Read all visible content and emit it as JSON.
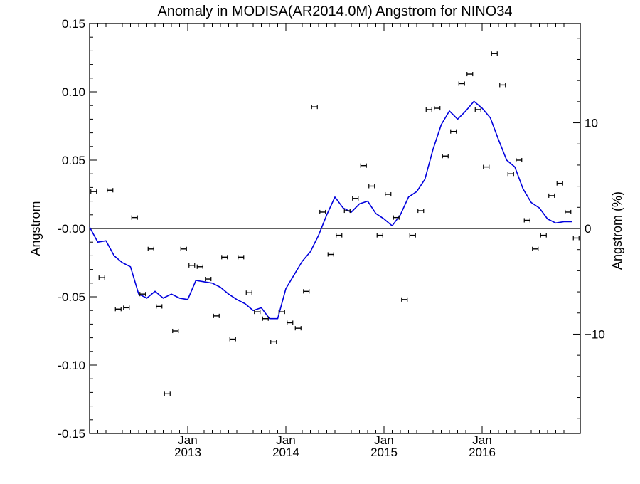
{
  "chart_data": {
    "type": "line",
    "title": "Anomaly in MODISA(AR2014.0M) Angstrom for NINO34",
    "ylabel": "Angstrom",
    "ylabel_right": "Angstrom (%)",
    "xlabel": "",
    "xlim": [
      "2012-01",
      "2016-12"
    ],
    "ylim": [
      -0.15,
      0.15
    ],
    "ylim_right": [
      -19.4,
      19.4
    ],
    "y_ticks": [
      {
        "value": 0.15,
        "label": "0.15"
      },
      {
        "value": 0.1,
        "label": "0.10"
      },
      {
        "value": 0.05,
        "label": "0.05"
      },
      {
        "value": 0.0,
        "label": "-0.00"
      },
      {
        "value": -0.05,
        "label": "-0.05"
      },
      {
        "value": -0.1,
        "label": "-0.10"
      },
      {
        "value": -0.15,
        "label": "-0.15"
      }
    ],
    "y_right_ticks": [
      {
        "value": 10,
        "label": "10"
      },
      {
        "value": 0,
        "label": "0"
      },
      {
        "value": -10,
        "label": "−10"
      }
    ],
    "x_ticks": [
      {
        "date": "2013-01",
        "month": "Jan",
        "year": "2013"
      },
      {
        "date": "2014-01",
        "month": "Jan",
        "year": "2014"
      },
      {
        "date": "2015-01",
        "month": "Jan",
        "year": "2015"
      },
      {
        "date": "2016-01",
        "month": "Jan",
        "year": "2016"
      }
    ],
    "grid": false,
    "zero_line": true,
    "colors": {
      "line": "#0000dd",
      "points": "#000000",
      "axes": "#000000"
    },
    "series": [
      {
        "type": "line",
        "points": [
          [
            "2012-01",
            0.001
          ],
          [
            "2012-02",
            -0.01
          ],
          [
            "2012-03",
            -0.009
          ],
          [
            "2012-04",
            -0.02
          ],
          [
            "2012-05",
            -0.025
          ],
          [
            "2012-06",
            -0.028
          ],
          [
            "2012-07",
            -0.048
          ],
          [
            "2012-08",
            -0.051
          ],
          [
            "2012-09",
            -0.046
          ],
          [
            "2012-10",
            -0.051
          ],
          [
            "2012-11",
            -0.048
          ],
          [
            "2012-12",
            -0.051
          ],
          [
            "2013-01",
            -0.052
          ],
          [
            "2013-02",
            -0.038
          ],
          [
            "2013-03",
            -0.039
          ],
          [
            "2013-04",
            -0.04
          ],
          [
            "2013-05",
            -0.043
          ],
          [
            "2013-06",
            -0.048
          ],
          [
            "2013-07",
            -0.052
          ],
          [
            "2013-08",
            -0.055
          ],
          [
            "2013-09",
            -0.06
          ],
          [
            "2013-10",
            -0.058
          ],
          [
            "2013-11",
            -0.066
          ],
          [
            "2013-12",
            -0.066
          ],
          [
            "2014-01",
            -0.044
          ],
          [
            "2014-02",
            -0.034
          ],
          [
            "2014-03",
            -0.024
          ],
          [
            "2014-04",
            -0.017
          ],
          [
            "2014-05",
            -0.005
          ],
          [
            "2014-06",
            0.01
          ],
          [
            "2014-07",
            0.023
          ],
          [
            "2014-08",
            0.015
          ],
          [
            "2014-09",
            0.012
          ],
          [
            "2014-10",
            0.018
          ],
          [
            "2014-11",
            0.02
          ],
          [
            "2014-12",
            0.011
          ],
          [
            "2015-01",
            0.007
          ],
          [
            "2015-02",
            0.002
          ],
          [
            "2015-03",
            0.01
          ],
          [
            "2015-04",
            0.023
          ],
          [
            "2015-05",
            0.027
          ],
          [
            "2015-06",
            0.036
          ],
          [
            "2015-07",
            0.058
          ],
          [
            "2015-08",
            0.076
          ],
          [
            "2015-09",
            0.086
          ],
          [
            "2015-10",
            0.08
          ],
          [
            "2015-11",
            0.086
          ],
          [
            "2015-12",
            0.093
          ],
          [
            "2016-01",
            0.088
          ],
          [
            "2016-02",
            0.081
          ],
          [
            "2016-03",
            0.065
          ],
          [
            "2016-04",
            0.05
          ],
          [
            "2016-05",
            0.045
          ],
          [
            "2016-06",
            0.029
          ],
          [
            "2016-07",
            0.019
          ],
          [
            "2016-08",
            0.015
          ],
          [
            "2016-09",
            0.007
          ],
          [
            "2016-10",
            0.004
          ],
          [
            "2016-11",
            0.005
          ],
          [
            "2016-12",
            0.005
          ]
        ]
      },
      {
        "type": "scatter",
        "error_bar_halfwidth": 0.0008,
        "points": [
          [
            "2012-01",
            0.027
          ],
          [
            "2012-02",
            -0.036
          ],
          [
            "2012-03",
            0.028
          ],
          [
            "2012-04",
            -0.059
          ],
          [
            "2012-05",
            -0.058
          ],
          [
            "2012-06",
            0.008
          ],
          [
            "2012-07",
            -0.048
          ],
          [
            "2012-08",
            -0.015
          ],
          [
            "2012-09",
            -0.057
          ],
          [
            "2012-10",
            -0.121
          ],
          [
            "2012-11",
            -0.075
          ],
          [
            "2012-12",
            -0.015
          ],
          [
            "2013-01",
            -0.027
          ],
          [
            "2013-02",
            -0.028
          ],
          [
            "2013-03",
            -0.037
          ],
          [
            "2013-04",
            -0.064
          ],
          [
            "2013-05",
            -0.021
          ],
          [
            "2013-06",
            -0.081
          ],
          [
            "2013-07",
            -0.021
          ],
          [
            "2013-08",
            -0.047
          ],
          [
            "2013-09",
            -0.061
          ],
          [
            "2013-10",
            -0.066
          ],
          [
            "2013-11",
            -0.083
          ],
          [
            "2013-12",
            -0.061
          ],
          [
            "2014-01",
            -0.069
          ],
          [
            "2014-02",
            -0.073
          ],
          [
            "2014-03",
            -0.046
          ],
          [
            "2014-04",
            0.089
          ],
          [
            "2014-05",
            0.012
          ],
          [
            "2014-06",
            -0.019
          ],
          [
            "2014-07",
            -0.005
          ],
          [
            "2014-08",
            0.013
          ],
          [
            "2014-09",
            0.022
          ],
          [
            "2014-10",
            0.046
          ],
          [
            "2014-11",
            0.031
          ],
          [
            "2014-12",
            -0.005
          ],
          [
            "2015-01",
            0.025
          ],
          [
            "2015-02",
            0.008
          ],
          [
            "2015-03",
            -0.052
          ],
          [
            "2015-04",
            -0.005
          ],
          [
            "2015-05",
            0.013
          ],
          [
            "2015-06",
            0.087
          ],
          [
            "2015-07",
            0.088
          ],
          [
            "2015-08",
            0.053
          ],
          [
            "2015-09",
            0.071
          ],
          [
            "2015-10",
            0.106
          ],
          [
            "2015-11",
            0.113
          ],
          [
            "2015-12",
            0.087
          ],
          [
            "2016-01",
            0.045
          ],
          [
            "2016-02",
            0.128
          ],
          [
            "2016-03",
            0.105
          ],
          [
            "2016-04",
            0.04
          ],
          [
            "2016-05",
            0.05
          ],
          [
            "2016-06",
            0.006
          ],
          [
            "2016-07",
            -0.015
          ],
          [
            "2016-08",
            -0.005
          ],
          [
            "2016-09",
            0.024
          ],
          [
            "2016-10",
            0.033
          ],
          [
            "2016-11",
            0.012
          ],
          [
            "2016-12",
            -0.007
          ]
        ]
      }
    ]
  }
}
